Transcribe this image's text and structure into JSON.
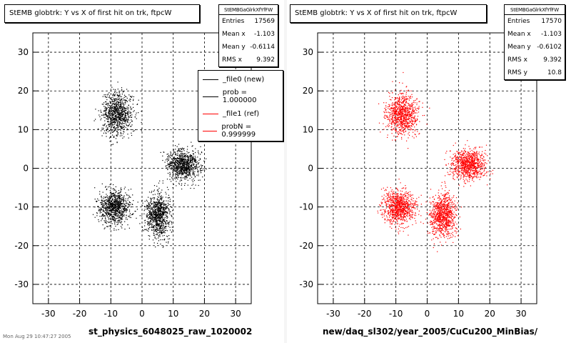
{
  "chart_data": [
    {
      "type": "scatter",
      "title": "StEMB globtrk: Y vs X of first hit on trk, ftpcW",
      "xlabel": "st_physics_6048025_raw_1020002",
      "ylabel": "",
      "xlim": [
        -35,
        35
      ],
      "ylim": [
        -35,
        35
      ],
      "x_ticks": [
        -30,
        -20,
        -10,
        0,
        10,
        20,
        30
      ],
      "y_ticks": [
        -30,
        -20,
        -10,
        0,
        10,
        20,
        30
      ],
      "grid": true,
      "color": "#000000",
      "stats": {
        "name": "StEMBGaGlrkXfYfFW",
        "rows": [
          {
            "label": "Entries",
            "value": "17569"
          },
          {
            "label": "Mean x",
            "value": "-1.103"
          },
          {
            "label": "Mean y",
            "value": "-0.6114"
          },
          {
            "label": "RMS x",
            "value": "9.392"
          }
        ]
      },
      "legend": {
        "placement": "top-right",
        "entries": [
          {
            "label": "_file0 (new)",
            "color": "#000000"
          },
          {
            "label": "prob = 1.000000",
            "color": "#000000"
          },
          {
            "label": "_file1 (ref)",
            "color": "#ff0000"
          },
          {
            "label": "probN = 0.999999",
            "color": "#ff0000"
          }
        ]
      },
      "clusters": [
        {
          "cx": -8,
          "cy": 14,
          "sx": 4.5,
          "sy": 5
        },
        {
          "cx": 13,
          "cy": 1,
          "sx": 5,
          "sy": 3.5
        },
        {
          "cx": -9,
          "cy": -10,
          "sx": 4.5,
          "sy": 4
        },
        {
          "cx": 5,
          "cy": -12,
          "sx": 3.5,
          "sy": 5
        }
      ]
    },
    {
      "type": "scatter",
      "title": "StEMB globtrk: Y vs X of first hit on trk, ftpcW",
      "xlabel": "new/daq_sl302/year_2005/CuCu200_MinBias/",
      "ylabel": "",
      "xlim": [
        -35,
        35
      ],
      "ylim": [
        -35,
        35
      ],
      "x_ticks": [
        -30,
        -20,
        -10,
        0,
        10,
        20,
        30
      ],
      "y_ticks": [
        -30,
        -20,
        -10,
        0,
        10,
        20,
        30
      ],
      "grid": true,
      "color": "#ff0000",
      "stats": {
        "name": "StEMBGaGlrkXfYfFW",
        "rows": [
          {
            "label": "Entries",
            "value": "17570"
          },
          {
            "label": "Mean x",
            "value": "-1.103"
          },
          {
            "label": "Mean y",
            "value": "-0.6102"
          },
          {
            "label": "RMS x",
            "value": "9.392"
          },
          {
            "label": "RMS y",
            "value": "10.8"
          }
        ]
      },
      "clusters": [
        {
          "cx": -8,
          "cy": 14,
          "sx": 4.5,
          "sy": 5
        },
        {
          "cx": 13,
          "cy": 1,
          "sx": 5,
          "sy": 3.5
        },
        {
          "cx": -9,
          "cy": -10,
          "sx": 4.5,
          "sy": 4
        },
        {
          "cx": 5,
          "cy": -12,
          "sx": 3.5,
          "sy": 5
        }
      ]
    }
  ],
  "timestamp": "Mon Aug 29 10:47:27 2005"
}
